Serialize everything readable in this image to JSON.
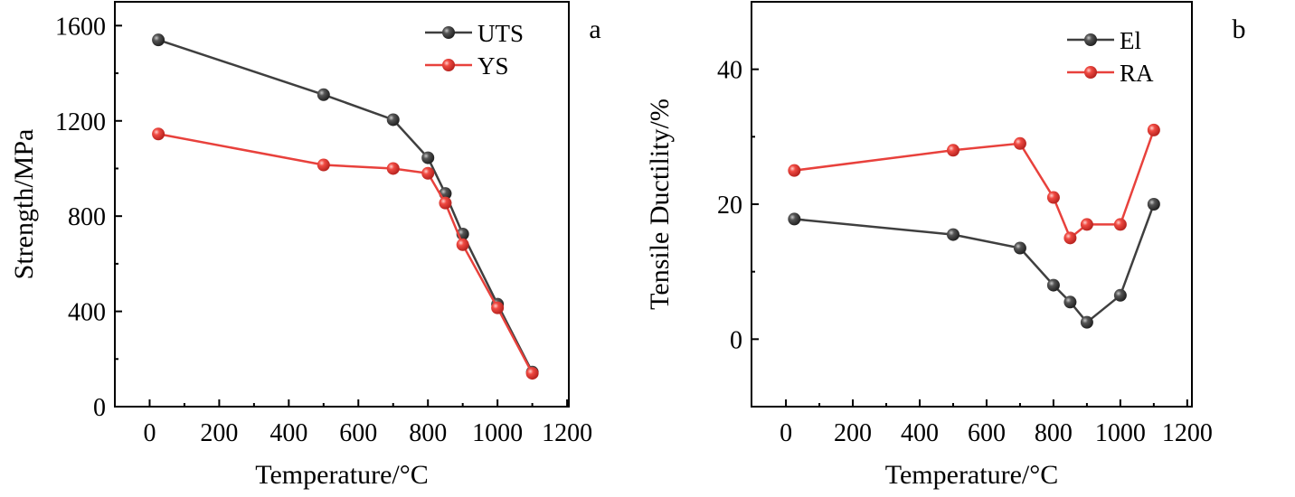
{
  "chart_data": [
    {
      "type": "line",
      "panel_label": "a",
      "xlabel": "Temperature/°C",
      "ylabel": "Strength/MPa",
      "xlim": [
        -100,
        1205
      ],
      "ylim": [
        0,
        1700
      ],
      "xticks": [
        0,
        200,
        400,
        600,
        800,
        1000,
        1200
      ],
      "yticks": [
        0,
        400,
        800,
        1200,
        1600
      ],
      "legend_position": "top-right",
      "x": [
        25,
        500,
        700,
        800,
        850,
        900,
        1000,
        1100
      ],
      "series": [
        {
          "name": "UTS",
          "color": "#3f3f3f",
          "values": [
            1540,
            1310,
            1205,
            1045,
            895,
            725,
            430,
            145
          ]
        },
        {
          "name": "YS",
          "color": "#e8413c",
          "values": [
            1145,
            1015,
            1000,
            980,
            855,
            680,
            415,
            140
          ]
        }
      ]
    },
    {
      "type": "line",
      "panel_label": "b",
      "xlabel": "Temperature/°C",
      "ylabel": "Tensile Ductility/%",
      "xlim": [
        -103,
        1214
      ],
      "ylim": [
        -10,
        50
      ],
      "xticks": [
        0,
        200,
        400,
        600,
        800,
        1000,
        1200
      ],
      "yticks": [
        0,
        20,
        40
      ],
      "legend_position": "top-right",
      "x": [
        25,
        500,
        700,
        800,
        850,
        900,
        1000,
        1100
      ],
      "series": [
        {
          "name": "El",
          "color": "#3f3f3f",
          "values": [
            17.8,
            15.5,
            13.5,
            8,
            5.5,
            2.5,
            6.5,
            20
          ]
        },
        {
          "name": "RA",
          "color": "#e8413c",
          "values": [
            25,
            28,
            29,
            21,
            15,
            17,
            17,
            31
          ]
        }
      ]
    }
  ]
}
